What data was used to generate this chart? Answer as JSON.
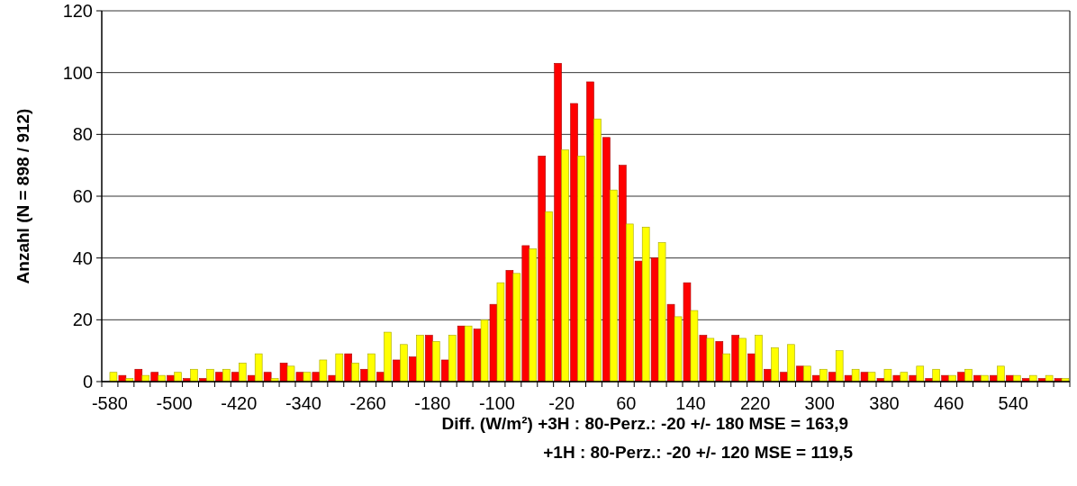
{
  "chart_data": {
    "type": "bar",
    "ylabel": "Anzahl  (N = 898 / 912)",
    "xlabel": "Diff. (W/m²)  +3H : 80-Perz.: -20 +/- 180  MSE = 163,9",
    "annotations": [
      "+1H : 80-Perz.: -20 +/- 120  MSE = 119,5"
    ],
    "categories": [
      "-580",
      null,
      null,
      null,
      "-500",
      null,
      null,
      null,
      "-420",
      null,
      null,
      null,
      "-340",
      null,
      null,
      null,
      "-260",
      null,
      null,
      null,
      "-180",
      null,
      null,
      null,
      "-100",
      null,
      null,
      null,
      "-20",
      null,
      null,
      null,
      "60",
      null,
      null,
      null,
      "140",
      null,
      null,
      null,
      "220",
      null,
      null,
      null,
      "300",
      null,
      null,
      null,
      "380",
      null,
      null,
      null,
      "460",
      null,
      null,
      null,
      "540",
      null,
      null,
      null
    ],
    "series": [
      {
        "color": "#ff0000",
        "values": [
          0,
          2,
          4,
          3,
          2,
          1,
          1,
          3,
          3,
          2,
          3,
          6,
          3,
          3,
          2,
          9,
          4,
          3,
          7,
          8,
          15,
          7,
          18,
          17,
          25,
          36,
          44,
          73,
          103,
          90,
          97,
          79,
          70,
          39,
          40,
          25,
          32,
          15,
          13,
          15,
          9,
          4,
          3,
          5,
          2,
          3,
          2,
          3,
          1,
          2,
          2,
          1,
          2,
          3,
          2,
          2,
          2,
          1,
          1,
          1
        ]
      },
      {
        "color": "#ffff00",
        "values": [
          3,
          1,
          2,
          2,
          3,
          4,
          4,
          4,
          6,
          9,
          1,
          5,
          3,
          7,
          9,
          6,
          9,
          16,
          12,
          15,
          13,
          15,
          18,
          20,
          32,
          35,
          43,
          55,
          75,
          73,
          85,
          62,
          51,
          50,
          45,
          21,
          23,
          14,
          9,
          14,
          15,
          11,
          12,
          5,
          4,
          10,
          4,
          3,
          4,
          3,
          5,
          4,
          2,
          4,
          2,
          5,
          2,
          2,
          2,
          1
        ]
      }
    ],
    "ylim": [
      0,
      120
    ],
    "yticks": [
      0,
      20,
      40,
      60,
      80,
      100,
      120
    ],
    "grid": "y"
  }
}
